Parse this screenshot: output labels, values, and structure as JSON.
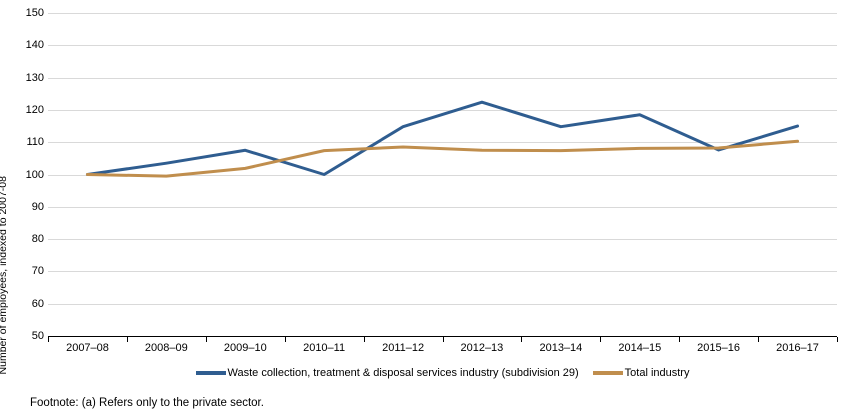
{
  "chart_data": {
    "type": "line",
    "title": "",
    "xlabel": "",
    "ylabel": "Number of employees, indexed to 2007-08",
    "ylim": [
      50,
      150
    ],
    "ytick_step": 10,
    "grid": true,
    "legend_position": "bottom",
    "categories": [
      "2007–08",
      "2008–09",
      "2009–10",
      "2010–11",
      "2011–12",
      "2012–13",
      "2013–14",
      "2014–15",
      "2015–16",
      "2016–17"
    ],
    "series": [
      {
        "name": "Waste collection, treatment & disposal services industry (subdivision 29)",
        "color": "#2f5d90",
        "values": [
          100,
          103.5,
          107.5,
          100,
          114.8,
          122.4,
          114.8,
          118.5,
          107.6,
          115.0
        ]
      },
      {
        "name": "Total industry",
        "color": "#c08e4d",
        "values": [
          100,
          99.5,
          101.9,
          107.4,
          108.5,
          107.5,
          107.4,
          108.1,
          108.2,
          110.3
        ]
      }
    ]
  },
  "footnote": "Footnote: (a) Refers only to the private sector.",
  "colors": {
    "gridline": "#d9d9d9",
    "axis": "#000000",
    "text": "#000000",
    "background": "#ffffff"
  }
}
